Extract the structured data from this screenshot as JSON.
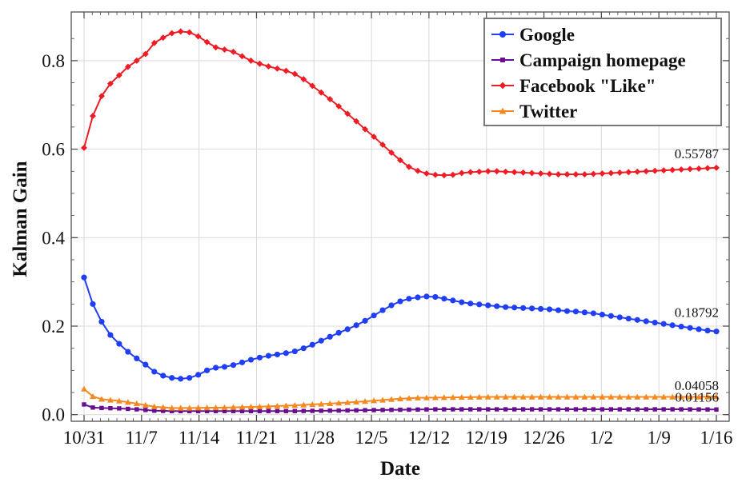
{
  "chart_data": {
    "type": "line",
    "xlabel": "Date",
    "ylabel": "Kalman Gain",
    "grid": true,
    "legend_position": "top-right",
    "x_ticks": [
      "10/31",
      "11/7",
      "11/14",
      "11/21",
      "11/28",
      "12/5",
      "12/12",
      "12/19",
      "12/26",
      "1/2",
      "1/9",
      "1/16"
    ],
    "x_range": [
      0,
      77
    ],
    "y_ticks": [
      "0.0",
      "0.2",
      "0.4",
      "0.6",
      "0.8"
    ],
    "y_range": [
      -0.015,
      0.91
    ],
    "series": [
      {
        "name": "Google",
        "color": "#1f3ef5",
        "marker": "circle",
        "end_label": "0.18792",
        "points": [
          [
            0,
            0.31
          ],
          [
            1,
            0.25
          ],
          [
            2,
            0.21
          ],
          [
            3,
            0.18
          ],
          [
            4,
            0.16
          ],
          [
            5,
            0.142
          ],
          [
            6,
            0.127
          ],
          [
            7,
            0.113
          ],
          [
            8,
            0.097
          ],
          [
            9,
            0.088
          ],
          [
            10,
            0.083
          ],
          [
            11,
            0.081
          ],
          [
            12,
            0.083
          ],
          [
            13,
            0.09
          ],
          [
            14,
            0.1
          ],
          [
            15,
            0.106
          ],
          [
            16,
            0.108
          ],
          [
            17,
            0.112
          ],
          [
            18,
            0.118
          ],
          [
            19,
            0.124
          ],
          [
            20,
            0.129
          ],
          [
            21,
            0.133
          ],
          [
            22,
            0.136
          ],
          [
            23,
            0.139
          ],
          [
            24,
            0.143
          ],
          [
            25,
            0.15
          ],
          [
            26,
            0.158
          ],
          [
            27,
            0.167
          ],
          [
            28,
            0.176
          ],
          [
            29,
            0.185
          ],
          [
            30,
            0.193
          ],
          [
            31,
            0.202
          ],
          [
            32,
            0.212
          ],
          [
            33,
            0.224
          ],
          [
            34,
            0.236
          ],
          [
            35,
            0.247
          ],
          [
            36,
            0.256
          ],
          [
            37,
            0.262
          ],
          [
            38,
            0.265
          ],
          [
            39,
            0.267
          ],
          [
            40,
            0.266
          ],
          [
            41,
            0.262
          ],
          [
            42,
            0.258
          ],
          [
            43,
            0.254
          ],
          [
            44,
            0.251
          ],
          [
            45,
            0.249
          ],
          [
            46,
            0.247
          ],
          [
            47,
            0.245
          ],
          [
            48,
            0.243
          ],
          [
            49,
            0.242
          ],
          [
            50,
            0.241
          ],
          [
            51,
            0.24
          ],
          [
            52,
            0.239
          ],
          [
            53,
            0.238
          ],
          [
            54,
            0.236
          ],
          [
            55,
            0.234
          ],
          [
            56,
            0.233
          ],
          [
            57,
            0.231
          ],
          [
            58,
            0.229
          ],
          [
            59,
            0.226
          ],
          [
            60,
            0.223
          ],
          [
            61,
            0.22
          ],
          [
            62,
            0.217
          ],
          [
            63,
            0.214
          ],
          [
            64,
            0.211
          ],
          [
            65,
            0.208
          ],
          [
            66,
            0.205
          ],
          [
            67,
            0.202
          ],
          [
            68,
            0.199
          ],
          [
            69,
            0.196
          ],
          [
            70,
            0.193
          ],
          [
            71,
            0.19
          ],
          [
            72,
            0.18792
          ]
        ]
      },
      {
        "name": "Campaign homepage",
        "color": "#6a0d91",
        "marker": "square",
        "end_label": "0.01156",
        "points": [
          [
            0,
            0.023
          ],
          [
            1,
            0.016
          ],
          [
            2,
            0.015
          ],
          [
            4,
            0.014
          ],
          [
            6,
            0.012
          ],
          [
            8,
            0.009
          ],
          [
            10,
            0.008
          ],
          [
            12,
            0.008
          ],
          [
            16,
            0.008
          ],
          [
            20,
            0.008
          ],
          [
            24,
            0.008
          ],
          [
            28,
            0.009
          ],
          [
            32,
            0.01
          ],
          [
            36,
            0.011
          ],
          [
            40,
            0.012
          ],
          [
            44,
            0.012
          ],
          [
            48,
            0.012
          ],
          [
            52,
            0.012
          ],
          [
            56,
            0.012
          ],
          [
            60,
            0.012
          ],
          [
            64,
            0.012
          ],
          [
            68,
            0.012
          ],
          [
            72,
            0.01156
          ]
        ]
      },
      {
        "name": "Facebook \"Like\"",
        "color": "#ee1c25",
        "marker": "diamond",
        "end_label": "0.55787",
        "points": [
          [
            0,
            0.603
          ],
          [
            1,
            0.675
          ],
          [
            2,
            0.72
          ],
          [
            3,
            0.748
          ],
          [
            4,
            0.767
          ],
          [
            5,
            0.786
          ],
          [
            6,
            0.8
          ],
          [
            7,
            0.815
          ],
          [
            8,
            0.84
          ],
          [
            9,
            0.852
          ],
          [
            10,
            0.862
          ],
          [
            11,
            0.866
          ],
          [
            12,
            0.864
          ],
          [
            13,
            0.855
          ],
          [
            14,
            0.842
          ],
          [
            15,
            0.83
          ],
          [
            16,
            0.825
          ],
          [
            17,
            0.82
          ],
          [
            18,
            0.81
          ],
          [
            19,
            0.8
          ],
          [
            20,
            0.793
          ],
          [
            21,
            0.787
          ],
          [
            22,
            0.782
          ],
          [
            23,
            0.777
          ],
          [
            24,
            0.77
          ],
          [
            25,
            0.758
          ],
          [
            26,
            0.743
          ],
          [
            27,
            0.728
          ],
          [
            28,
            0.713
          ],
          [
            29,
            0.697
          ],
          [
            30,
            0.68
          ],
          [
            31,
            0.663
          ],
          [
            32,
            0.645
          ],
          [
            33,
            0.628
          ],
          [
            34,
            0.61
          ],
          [
            35,
            0.592
          ],
          [
            36,
            0.575
          ],
          [
            37,
            0.56
          ],
          [
            38,
            0.551
          ],
          [
            39,
            0.545
          ],
          [
            40,
            0.542
          ],
          [
            41,
            0.541
          ],
          [
            42,
            0.542
          ],
          [
            43,
            0.546
          ],
          [
            44,
            0.548
          ],
          [
            45,
            0.549
          ],
          [
            46,
            0.55
          ],
          [
            47,
            0.55
          ],
          [
            48,
            0.549
          ],
          [
            49,
            0.548
          ],
          [
            50,
            0.547
          ],
          [
            51,
            0.546
          ],
          [
            52,
            0.545
          ],
          [
            53,
            0.544
          ],
          [
            54,
            0.543
          ],
          [
            55,
            0.543
          ],
          [
            56,
            0.543
          ],
          [
            57,
            0.543
          ],
          [
            58,
            0.544
          ],
          [
            59,
            0.545
          ],
          [
            60,
            0.546
          ],
          [
            61,
            0.547
          ],
          [
            62,
            0.548
          ],
          [
            63,
            0.549
          ],
          [
            64,
            0.55
          ],
          [
            65,
            0.551
          ],
          [
            66,
            0.552
          ],
          [
            67,
            0.553
          ],
          [
            68,
            0.554
          ],
          [
            69,
            0.555
          ],
          [
            70,
            0.556
          ],
          [
            71,
            0.557
          ],
          [
            72,
            0.55787
          ]
        ]
      },
      {
        "name": "Twitter",
        "color": "#f7881f",
        "marker": "triangle",
        "end_label": "0.04058",
        "points": [
          [
            0,
            0.058
          ],
          [
            1,
            0.041
          ],
          [
            2,
            0.035
          ],
          [
            4,
            0.031
          ],
          [
            6,
            0.025
          ],
          [
            8,
            0.018
          ],
          [
            10,
            0.015
          ],
          [
            12,
            0.015
          ],
          [
            16,
            0.016
          ],
          [
            20,
            0.018
          ],
          [
            24,
            0.021
          ],
          [
            28,
            0.025
          ],
          [
            32,
            0.03
          ],
          [
            36,
            0.036
          ],
          [
            38,
            0.038
          ],
          [
            42,
            0.039
          ],
          [
            46,
            0.04
          ],
          [
            50,
            0.04
          ],
          [
            54,
            0.04
          ],
          [
            58,
            0.04
          ],
          [
            62,
            0.04
          ],
          [
            66,
            0.04
          ],
          [
            70,
            0.04
          ],
          [
            72,
            0.04058
          ]
        ]
      }
    ]
  }
}
